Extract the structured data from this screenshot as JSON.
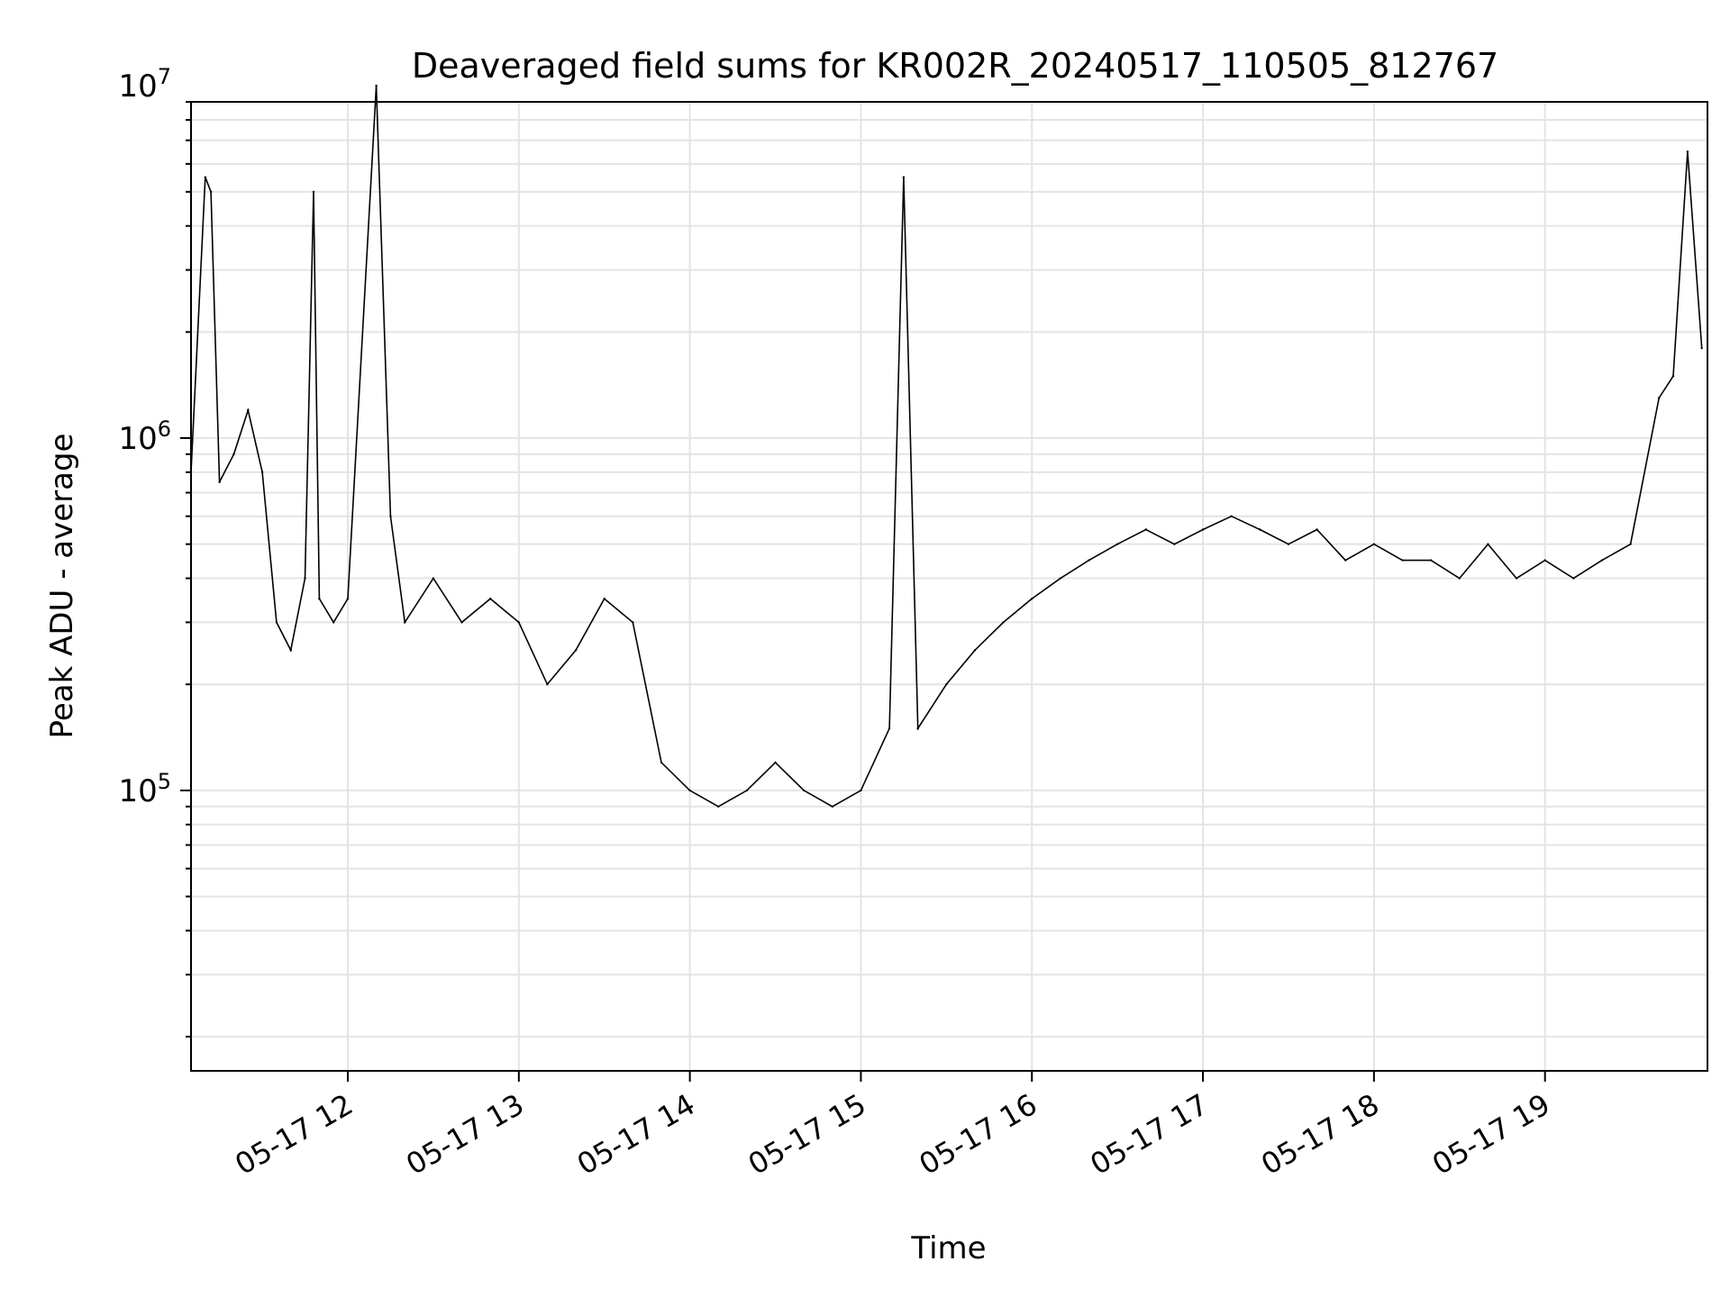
{
  "chart_data": {
    "type": "line",
    "title": "Deaveraged field sums for KR002R_20240517_110505_812767",
    "xlabel": "Time",
    "ylabel": "Peak ADU - average",
    "x_scale": "time",
    "y_scale": "log",
    "xlim": [
      "2024-05-17 11:05",
      "2024-05-17 19:57"
    ],
    "ylim": [
      16000,
      9000000
    ],
    "x_ticks": [
      "05-17 12",
      "05-17 13",
      "05-17 14",
      "05-17 15",
      "05-17 16",
      "05-17 17",
      "05-17 18",
      "05-17 19"
    ],
    "y_ticks": [
      100000,
      1000000,
      10000000
    ],
    "y_tick_labels": [
      {
        "base": "10",
        "exp": "5"
      },
      {
        "base": "10",
        "exp": "6"
      },
      {
        "base": "10",
        "exp": "7"
      }
    ],
    "grid": true,
    "line_color": "#000000",
    "series": [
      {
        "x": [
          "2024-05-17 11:05",
          "2024-05-17 11:10",
          "2024-05-17 11:12",
          "2024-05-17 11:15",
          "2024-05-17 11:20",
          "2024-05-17 11:25",
          "2024-05-17 11:30",
          "2024-05-17 11:35",
          "2024-05-17 11:40",
          "2024-05-17 11:45",
          "2024-05-17 11:48",
          "2024-05-17 11:50",
          "2024-05-17 11:55",
          "2024-05-17 12:00",
          "2024-05-17 12:10",
          "2024-05-17 12:15",
          "2024-05-17 12:20",
          "2024-05-17 12:30",
          "2024-05-17 12:40",
          "2024-05-17 12:50",
          "2024-05-17 13:00",
          "2024-05-17 13:10",
          "2024-05-17 13:20",
          "2024-05-17 13:30",
          "2024-05-17 13:40",
          "2024-05-17 13:50",
          "2024-05-17 14:00",
          "2024-05-17 14:10",
          "2024-05-17 14:20",
          "2024-05-17 14:30",
          "2024-05-17 14:40",
          "2024-05-17 14:50",
          "2024-05-17 15:00",
          "2024-05-17 15:10",
          "2024-05-17 15:15",
          "2024-05-17 15:20",
          "2024-05-17 15:30",
          "2024-05-17 15:40",
          "2024-05-17 15:50",
          "2024-05-17 16:00",
          "2024-05-17 16:10",
          "2024-05-17 16:20",
          "2024-05-17 16:30",
          "2024-05-17 16:40",
          "2024-05-17 16:50",
          "2024-05-17 17:00",
          "2024-05-17 17:10",
          "2024-05-17 17:20",
          "2024-05-17 17:30",
          "2024-05-17 17:40",
          "2024-05-17 17:50",
          "2024-05-17 18:00",
          "2024-05-17 18:10",
          "2024-05-17 18:20",
          "2024-05-17 18:30",
          "2024-05-17 18:40",
          "2024-05-17 18:50",
          "2024-05-17 19:00",
          "2024-05-17 19:10",
          "2024-05-17 19:20",
          "2024-05-17 19:30",
          "2024-05-17 19:40",
          "2024-05-17 19:45",
          "2024-05-17 19:50",
          "2024-05-17 19:55"
        ],
        "y": [
          800000,
          5500000,
          5000000,
          750000,
          900000,
          1200000,
          800000,
          300000,
          250000,
          400000,
          5000000,
          350000,
          300000,
          350000,
          10000000,
          600000,
          300000,
          400000,
          300000,
          350000,
          300000,
          200000,
          250000,
          350000,
          300000,
          120000,
          100000,
          90000,
          100000,
          120000,
          100000,
          90000,
          100000,
          150000,
          5500000,
          150000,
          200000,
          250000,
          300000,
          350000,
          400000,
          450000,
          500000,
          550000,
          500000,
          550000,
          600000,
          550000,
          500000,
          550000,
          450000,
          500000,
          450000,
          450000,
          400000,
          500000,
          400000,
          450000,
          400000,
          450000,
          500000,
          1300000,
          1500000,
          6500000,
          1800000
        ]
      }
    ]
  }
}
